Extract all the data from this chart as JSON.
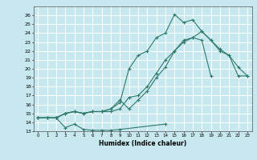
{
  "xlabel": "Humidex (Indice chaleur)",
  "background_color": "#c8e8f0",
  "grid_color": "#ffffff",
  "line_color": "#2d7a6a",
  "xlim": [
    -0.5,
    23.5
  ],
  "ylim": [
    13,
    27
  ],
  "xticks": [
    0,
    1,
    2,
    3,
    4,
    5,
    6,
    7,
    8,
    9,
    10,
    11,
    12,
    13,
    14,
    15,
    16,
    17,
    18,
    19,
    20,
    21,
    22,
    23
  ],
  "yticks": [
    13,
    14,
    15,
    16,
    17,
    18,
    19,
    20,
    21,
    22,
    23,
    24,
    25,
    26
  ],
  "series1_x": [
    0,
    1,
    2,
    3,
    4,
    5,
    6,
    7,
    8,
    9,
    14
  ],
  "series1_y": [
    14.5,
    14.5,
    14.5,
    13.4,
    13.8,
    13.2,
    13.1,
    13.1,
    13.1,
    13.2,
    13.8
  ],
  "series2_x": [
    0,
    1,
    2,
    3,
    4,
    5,
    6,
    7,
    8,
    9,
    10,
    11,
    12,
    13,
    14,
    15,
    16,
    17,
    18,
    19
  ],
  "series2_y": [
    14.5,
    14.5,
    14.5,
    15.0,
    15.2,
    15.0,
    15.2,
    15.2,
    15.2,
    15.5,
    16.8,
    17.0,
    18.0,
    19.5,
    21.0,
    22.0,
    23.2,
    23.5,
    23.2,
    19.2
  ],
  "series3_x": [
    0,
    1,
    2,
    3,
    4,
    5,
    6,
    7,
    8,
    9,
    10,
    11,
    12,
    13,
    14,
    15,
    16,
    17,
    18,
    19,
    20,
    21,
    22,
    23
  ],
  "series3_y": [
    14.5,
    14.5,
    14.5,
    15.0,
    15.2,
    15.0,
    15.2,
    15.2,
    15.5,
    16.2,
    20.0,
    21.5,
    22.0,
    23.5,
    24.0,
    26.1,
    25.2,
    25.5,
    24.2,
    23.2,
    22.0,
    21.5,
    20.2,
    19.2
  ],
  "series4_x": [
    0,
    1,
    2,
    3,
    4,
    5,
    6,
    7,
    8,
    9,
    10,
    11,
    12,
    13,
    14,
    15,
    16,
    17,
    18,
    19,
    20,
    21,
    22,
    23
  ],
  "series4_y": [
    14.5,
    14.5,
    14.5,
    15.0,
    15.2,
    15.0,
    15.2,
    15.2,
    15.5,
    16.5,
    15.5,
    16.5,
    17.5,
    19.0,
    20.2,
    22.0,
    23.0,
    23.5,
    24.2,
    23.2,
    22.2,
    21.5,
    19.2,
    19.2
  ]
}
